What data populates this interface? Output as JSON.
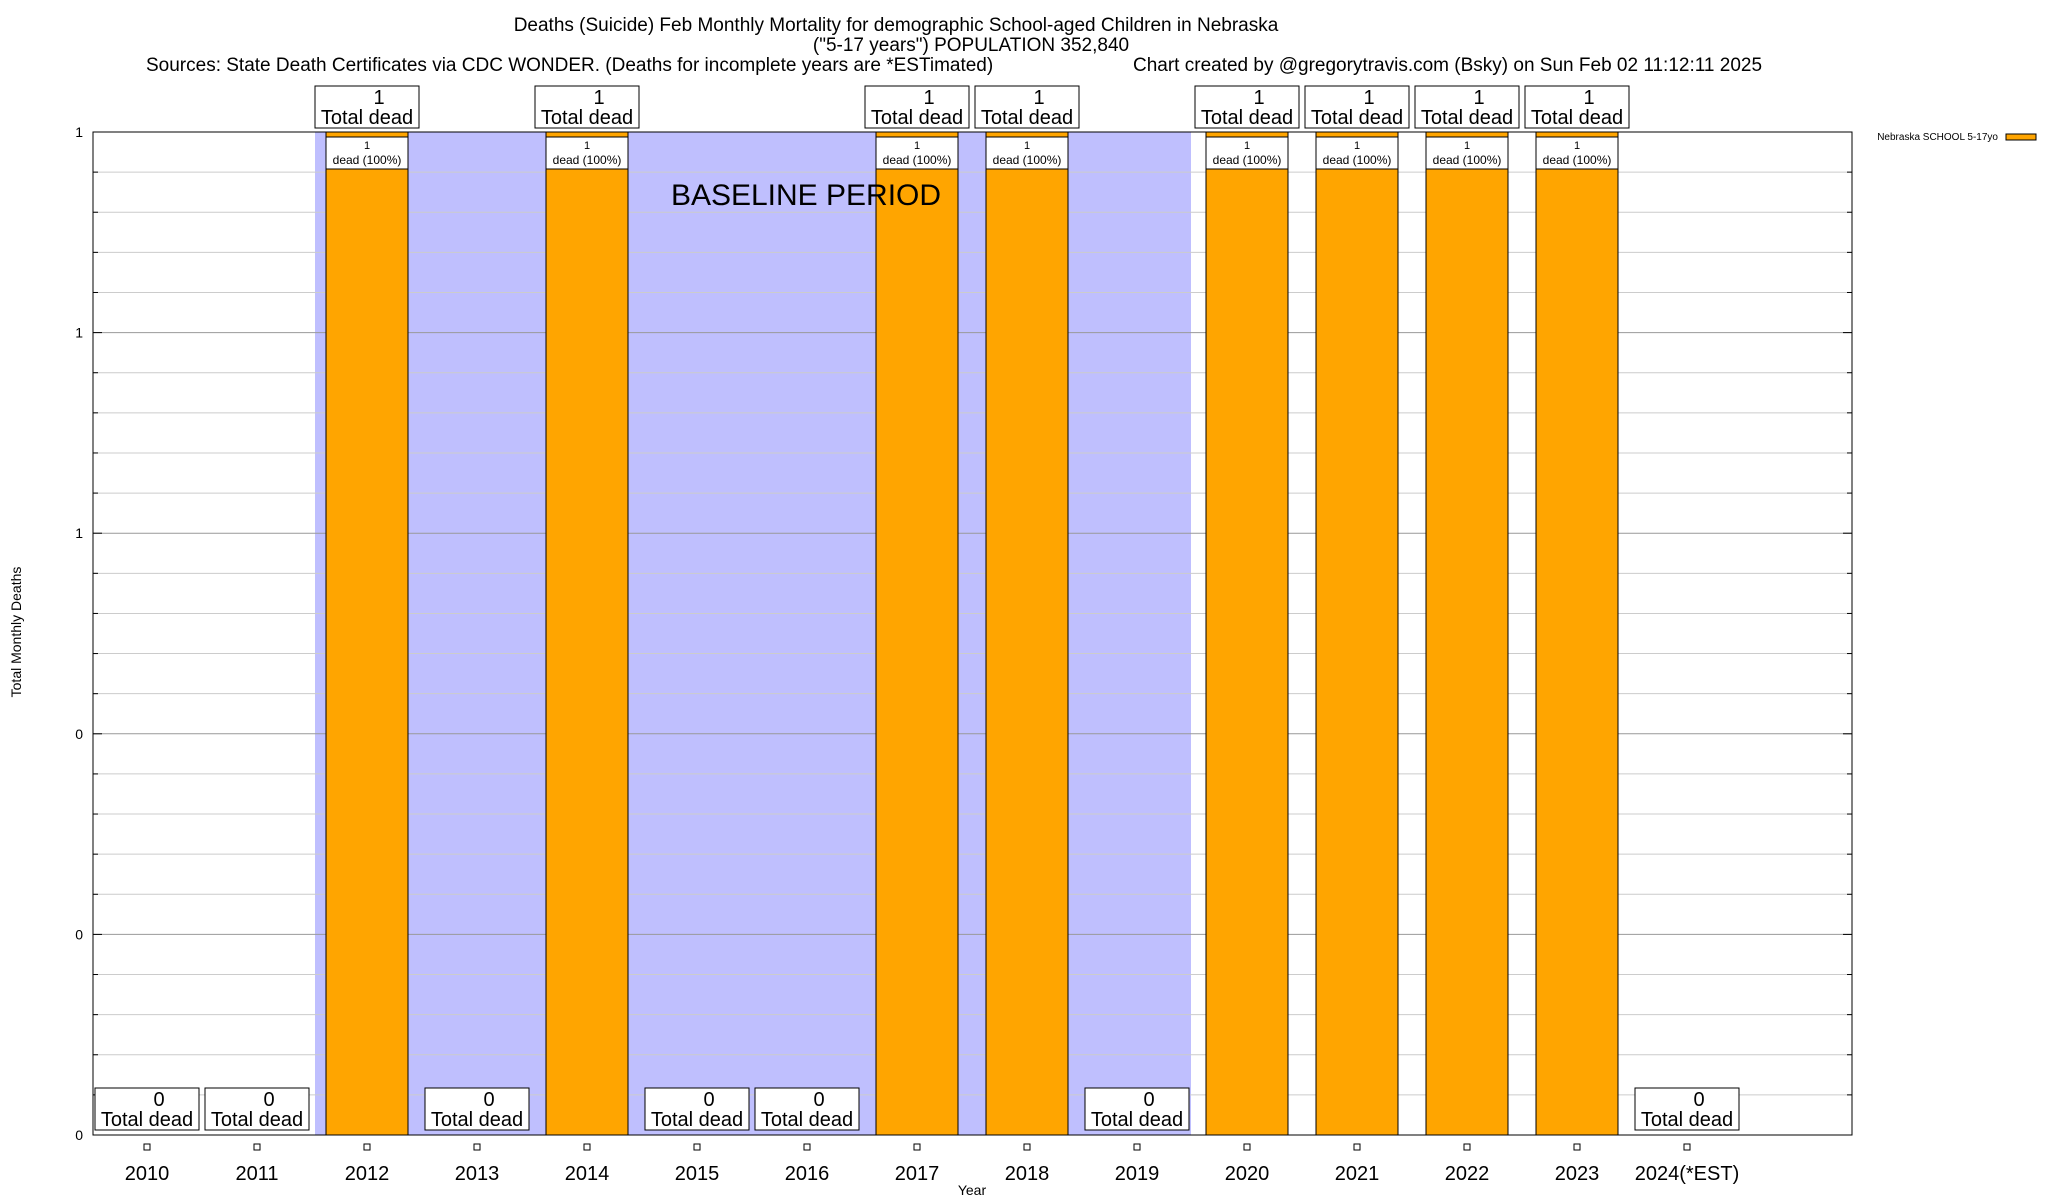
{
  "chart_data": {
    "type": "bar",
    "title_lines": [
      "Deaths (Suicide) Feb Monthly Mortality for demographic School-aged Children in Nebraska",
      "(\"5-17 years\") POPULATION 352,840"
    ],
    "sources": "Sources: State Death Certificates via CDC WONDER. (Deaths for incomplete years are *ESTimated)",
    "credit": "Chart created by @gregorytravis.com (Bsky) on Sun Feb 02 11:12:11 2025",
    "xlabel": "Year",
    "ylabel": "Total Monthly Deaths",
    "ylim": [
      0,
      1
    ],
    "y_tick_labels": [
      "0",
      "0",
      "0",
      "1",
      "1",
      "1"
    ],
    "categories": [
      "2010",
      "2011",
      "2012",
      "2013",
      "2014",
      "2015",
      "2016",
      "2017",
      "2018",
      "2019",
      "2020",
      "2021",
      "2022",
      "2023",
      "2024(*EST)"
    ],
    "series": [
      {
        "name": "Nebraska SCHOOL 5-17yo",
        "color": "#ffa500",
        "values": [
          0,
          0,
          1,
          0,
          1,
          0,
          0,
          1,
          1,
          0,
          1,
          1,
          1,
          1,
          0
        ]
      }
    ],
    "total_labels": [
      "0",
      "0",
      "1",
      "0",
      "1",
      "0",
      "0",
      "1",
      "1",
      "0",
      "1",
      "1",
      "1",
      "1",
      "0"
    ],
    "total_suffix": "Total dead",
    "bar_inner_top": [
      "1",
      "1",
      "1",
      "1",
      "1",
      "1",
      "1",
      "1"
    ],
    "bar_inner_bottom": "dead (100%)",
    "baseline_label": "BASELINE PERIOD",
    "baseline_range": [
      "2012",
      "2019"
    ],
    "colors": {
      "bar": "#ffa500",
      "baseline": "#bfbffe",
      "grid": "#cccccc"
    }
  }
}
